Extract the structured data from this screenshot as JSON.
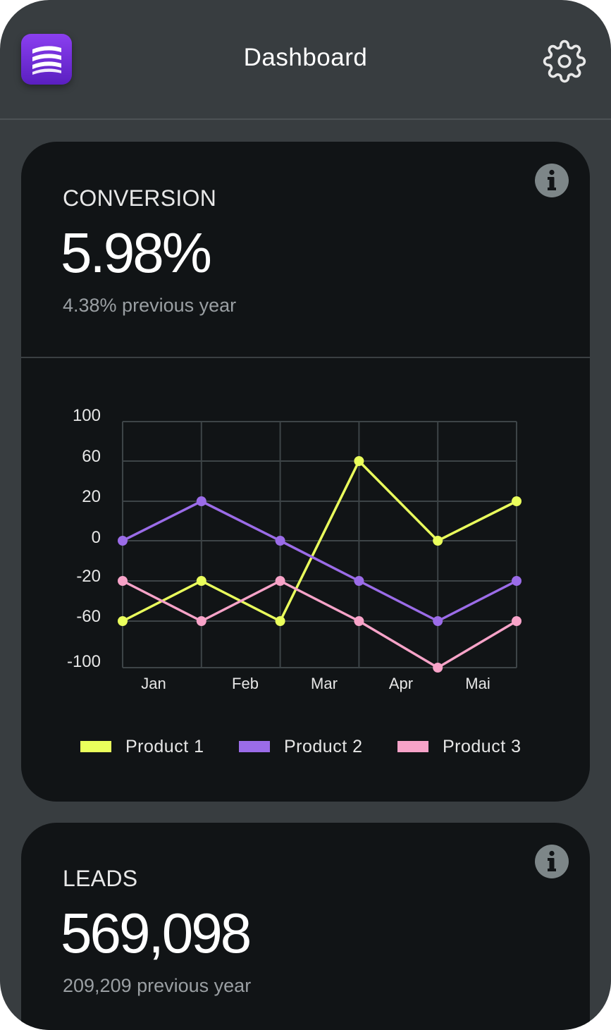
{
  "header": {
    "title": "Dashboard",
    "logo_icon": "stacked-layers-logo",
    "settings_icon": "gear-icon"
  },
  "colors": {
    "background": "#383d40",
    "card": "#111416",
    "logo": "#7b34e6",
    "product1": "#eaff5c",
    "product2": "#9b6ce8",
    "product3": "#f7a3c8"
  },
  "conversion": {
    "label": "CONVERSION",
    "value": "5.98%",
    "previous": "4.38% previous year",
    "info_icon": "info-icon"
  },
  "leads": {
    "label": "LEADS",
    "value": "569,098",
    "previous": "209,209 previous year",
    "info_icon": "info-icon"
  },
  "chart_data": {
    "type": "line",
    "title": "",
    "xlabel": "",
    "ylabel": "",
    "y_ticks": [
      "100",
      "60",
      "20",
      "0",
      "-20",
      "-60",
      "-100"
    ],
    "x_tick_labels": [
      "Jan",
      "Feb",
      "Mar",
      "Apr",
      "Mai"
    ],
    "x_points": 6,
    "grid": true,
    "legend_position": "bottom",
    "series": [
      {
        "name": "Product 1",
        "color": "#eaff5c",
        "values": [
          -60,
          -20,
          -60,
          60,
          0,
          20
        ]
      },
      {
        "name": "Product 2",
        "color": "#9b6ce8",
        "values": [
          0,
          20,
          0,
          -20,
          -60,
          -20
        ]
      },
      {
        "name": "Product 3",
        "color": "#f7a3c8",
        "values": [
          -20,
          -60,
          -20,
          -60,
          -100,
          -60
        ]
      }
    ]
  }
}
